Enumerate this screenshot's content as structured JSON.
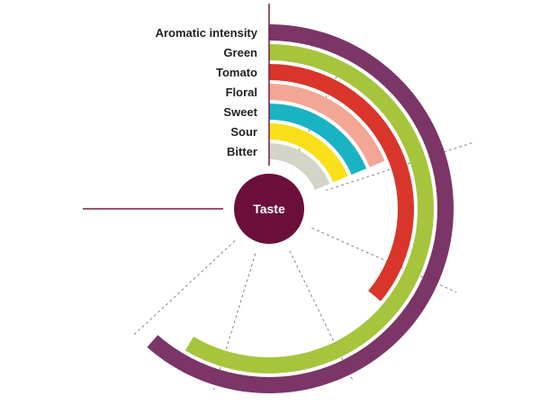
{
  "chart_data": {
    "type": "radial-bar",
    "title": "",
    "center_label": "Taste",
    "value_range": [
      0,
      10
    ],
    "series": [
      {
        "name": "Aromatic intensity",
        "value": 8.2,
        "color": "#7b3566"
      },
      {
        "name": "Green",
        "value": 7.8,
        "color": "#a7c43d"
      },
      {
        "name": "Tomato",
        "value": 4.8,
        "color": "#d9352b"
      },
      {
        "name": "Floral",
        "value": 2.5,
        "color": "#f3a695"
      },
      {
        "name": "Sweet",
        "value": 2.5,
        "color": "#19b3c4"
      },
      {
        "name": "Sour",
        "value": 2.5,
        "color": "#f9e01a"
      },
      {
        "name": "Bitter",
        "value": 2.5,
        "color": "#d4d5c9"
      }
    ],
    "colors": {
      "center": "#6b0f3a",
      "axis": "#7b1a45",
      "guide": "#888888"
    }
  }
}
